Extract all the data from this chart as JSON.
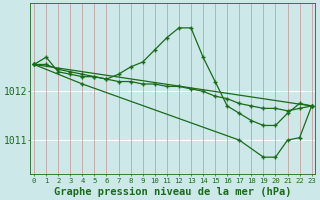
{
  "background_color": "#cce8e8",
  "plot_bg_color": "#cce8e8",
  "grid_color_v": "#c8a0a0",
  "grid_color_h": "#ffffff",
  "line_color": "#1a6b1a",
  "marker_color": "#1a6b1a",
  "xlabel": "Graphe pression niveau de la mer (hPa)",
  "xlabel_fontsize": 7.5,
  "xlabel_color": "#1a6b1a",
  "ylabel_fontsize": 7,
  "tick_color": "#1a6b1a",
  "ylim": [
    1010.3,
    1013.8
  ],
  "yticks": [
    1011,
    1012
  ],
  "xlim": [
    -0.3,
    23.3
  ],
  "xticks": [
    0,
    1,
    2,
    3,
    4,
    5,
    6,
    7,
    8,
    9,
    10,
    11,
    12,
    13,
    14,
    15,
    16,
    17,
    18,
    19,
    20,
    21,
    22,
    23
  ],
  "series": [
    {
      "x": [
        0,
        1,
        2,
        3,
        4,
        5,
        6,
        7,
        8,
        9,
        10,
        11,
        12,
        13,
        14,
        15,
        16,
        17,
        18,
        19,
        20,
        21,
        22,
        23
      ],
      "y": [
        1012.55,
        1012.55,
        1012.45,
        1012.4,
        1012.35,
        1012.3,
        1012.25,
        1012.2,
        1012.2,
        1012.15,
        1012.15,
        1012.1,
        1012.1,
        1012.05,
        1012.0,
        1011.9,
        1011.85,
        1011.75,
        1011.7,
        1011.65,
        1011.65,
        1011.6,
        1011.65,
        1011.7
      ]
    },
    {
      "x": [
        0,
        1,
        2,
        3,
        4,
        5,
        6,
        7,
        8,
        9,
        10,
        11,
        12,
        13,
        14,
        15,
        16,
        17,
        18,
        19,
        20,
        21,
        22,
        23
      ],
      "y": [
        1012.55,
        1012.7,
        1012.4,
        1012.35,
        1012.3,
        1012.3,
        1012.25,
        1012.35,
        1012.5,
        1012.6,
        1012.85,
        1013.1,
        1013.3,
        1013.3,
        1012.7,
        1012.2,
        1011.7,
        1011.55,
        1011.4,
        1011.3,
        1011.3,
        1011.55,
        1011.75,
        1011.7
      ]
    },
    {
      "x": [
        0,
        23
      ],
      "y": [
        1012.55,
        1011.7
      ]
    },
    {
      "x": [
        0,
        4,
        17,
        19,
        20,
        21,
        22,
        23
      ],
      "y": [
        1012.55,
        1012.15,
        1011.0,
        1010.65,
        1010.65,
        1011.0,
        1011.05,
        1011.7
      ]
    }
  ]
}
